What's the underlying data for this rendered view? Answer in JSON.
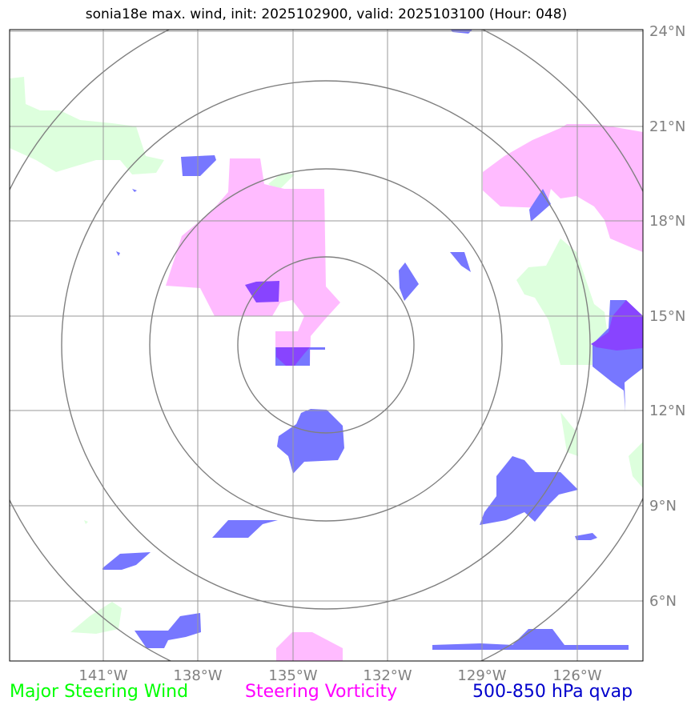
{
  "title": "sonia18e max. wind, init: 2025102900, valid: 2025103100 (Hour: 048)",
  "map": {
    "lon_labels": [
      "141°W",
      "138°W",
      "135°W",
      "132°W",
      "129°W",
      "126°W"
    ],
    "lat_labels": [
      "24°N",
      "21°N",
      "18°N",
      "15°N",
      "12°N",
      "9°N",
      "6°N"
    ],
    "range_rings": 4,
    "colors": {
      "wind": "#ddffdd",
      "vorticity": "#ffbbff",
      "qvap": "#7777ff",
      "overlap": "#8844ff",
      "grid": "#999999",
      "ring": "#808080"
    }
  },
  "legend": {
    "wind": "Major Steering Wind",
    "vorticity": "Steering Vorticity",
    "qvap": "500-850 hPa qvap"
  }
}
